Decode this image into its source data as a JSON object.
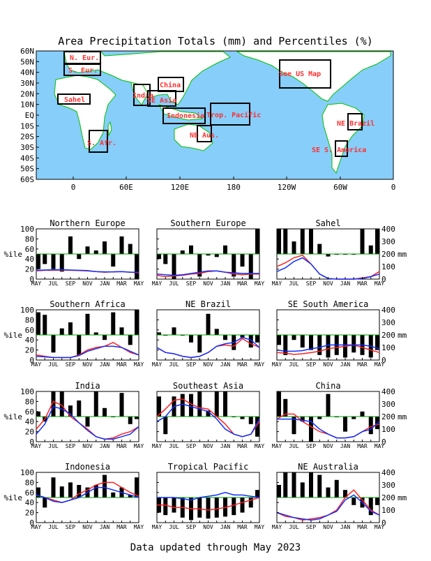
{
  "page": {
    "title": "Area Precipitation Totals (mm) and Percentiles (%)",
    "footer": "Data updated through May 2023"
  },
  "map": {
    "lat_labels": [
      "60N",
      "50N",
      "40N",
      "30N",
      "20N",
      "10N",
      "EQ",
      "10S",
      "20S",
      "30S",
      "40S",
      "50S",
      "60S"
    ],
    "lon_labels": [
      "0",
      "60E",
      "120E",
      "180",
      "120W",
      "60W",
      "0"
    ],
    "regions": [
      {
        "id": "n-eur",
        "label": "N. Eur."
      },
      {
        "id": "s-eur",
        "label": "S. Eur."
      },
      {
        "id": "sahel",
        "label": "Sahel"
      },
      {
        "id": "india",
        "label": "India"
      },
      {
        "id": "china",
        "label": "China"
      },
      {
        "id": "se-asia",
        "label": "SE Asia"
      },
      {
        "id": "indonesia",
        "label": "Indonesia"
      },
      {
        "id": "trop-pacific",
        "label": "Trop. Pacific"
      },
      {
        "id": "ne-aus",
        "label": "NE Aus."
      },
      {
        "id": "s-afr",
        "label": "S. Afr."
      },
      {
        "id": "us-map",
        "label": "See US Map"
      },
      {
        "id": "ne-brazil",
        "label": "NE Brazil"
      },
      {
        "id": "se-s-america",
        "label": "SE S. America"
      }
    ],
    "colors": {
      "ocean": "#87cefa",
      "land": "#ffffff",
      "coast": "#00c000",
      "box": "#000000",
      "label": "#ff3030"
    }
  },
  "axes_text": {
    "pct_label": "%ile",
    "mm_label": "mm",
    "pct_ticks": [
      "0",
      "20",
      "40",
      "60",
      "80",
      "100"
    ],
    "mm_ticks": [
      "0",
      "100",
      "200",
      "300",
      "400"
    ],
    "month_ticks": [
      "MAY",
      "JUL",
      "SEP",
      "NOV",
      "JAN",
      "MAR",
      "MAY"
    ]
  },
  "chart_data": [
    {
      "type": "bar",
      "title": "Northern Europe",
      "ylim": [
        0,
        100
      ],
      "y2lim": [
        0,
        400
      ],
      "months": [
        "MAY",
        "JUN",
        "JUL",
        "AUG",
        "SEP",
        "OCT",
        "NOV",
        "DEC",
        "JAN",
        "FEB",
        "MAR",
        "APR",
        "MAY"
      ],
      "percentiles": [
        20,
        30,
        20,
        15,
        85,
        40,
        65,
        57,
        75,
        25,
        85,
        70,
        0
      ],
      "series": [
        {
          "name": "red",
          "values": [
            65,
            70,
            70,
            72,
            70,
            68,
            65,
            60,
            55,
            58,
            60,
            55,
            50
          ]
        },
        {
          "name": "blue",
          "values": [
            70,
            72,
            75,
            75,
            72,
            70,
            68,
            60,
            58,
            58,
            60,
            55,
            55
          ]
        }
      ]
    },
    {
      "type": "bar",
      "title": "Southern Europe",
      "ylim": [
        0,
        100
      ],
      "y2lim": [
        0,
        400
      ],
      "months": [
        "MAY",
        "JUN",
        "JUL",
        "AUG",
        "SEP",
        "OCT",
        "NOV",
        "DEC",
        "JAN",
        "FEB",
        "MAR",
        "APR",
        "MAY"
      ],
      "percentiles": [
        40,
        30,
        0,
        57,
        67,
        5,
        47,
        44,
        67,
        5,
        25,
        0,
        100
      ],
      "series": [
        {
          "name": "red",
          "values": [
            30,
            20,
            25,
            30,
            40,
            45,
            60,
            65,
            55,
            40,
            35,
            40,
            40
          ]
        },
        {
          "name": "blue",
          "values": [
            40,
            35,
            30,
            35,
            45,
            55,
            65,
            65,
            55,
            50,
            45,
            45,
            45
          ]
        }
      ]
    },
    {
      "type": "bar",
      "title": "Sahel",
      "ylim": [
        0,
        100
      ],
      "y2lim": [
        0,
        400
      ],
      "months": [
        "MAY",
        "JUN",
        "JUL",
        "AUG",
        "SEP",
        "OCT",
        "NOV",
        "DEC",
        "JAN",
        "FEB",
        "MAR",
        "APR",
        "MAY"
      ],
      "percentiles": [
        100,
        100,
        75,
        100,
        100,
        70,
        45,
        50,
        50,
        50,
        100,
        67,
        100
      ],
      "series": [
        {
          "name": "red",
          "values": [
            100,
            130,
            170,
            190,
            120,
            40,
            5,
            0,
            0,
            0,
            10,
            20,
            60
          ]
        },
        {
          "name": "blue",
          "values": [
            60,
            90,
            140,
            170,
            120,
            40,
            5,
            0,
            0,
            0,
            5,
            20,
            40
          ]
        }
      ]
    },
    {
      "type": "bar",
      "title": "Southern Africa",
      "ylim": [
        0,
        100
      ],
      "y2lim": [
        0,
        400
      ],
      "months": [
        "MAY",
        "JUN",
        "JUL",
        "AUG",
        "SEP",
        "OCT",
        "NOV",
        "DEC",
        "JAN",
        "FEB",
        "MAR",
        "APR",
        "MAY"
      ],
      "percentiles": [
        95,
        90,
        15,
        63,
        75,
        10,
        92,
        55,
        40,
        95,
        65,
        30,
        100
      ],
      "series": [
        {
          "name": "red",
          "values": [
            40,
            30,
            20,
            20,
            20,
            40,
            80,
            100,
            110,
            140,
            100,
            60,
            40
          ]
        },
        {
          "name": "blue",
          "values": [
            30,
            25,
            20,
            20,
            20,
            35,
            70,
            90,
            110,
            110,
            100,
            70,
            40
          ]
        }
      ]
    },
    {
      "type": "bar",
      "title": "NE Brazil",
      "ylim": [
        0,
        100
      ],
      "y2lim": [
        0,
        400
      ],
      "months": [
        "MAY",
        "JUN",
        "JUL",
        "AUG",
        "SEP",
        "OCT",
        "NOV",
        "DEC",
        "JAN",
        "FEB",
        "MAR",
        "APR",
        "MAY"
      ],
      "percentiles": [
        55,
        50,
        65,
        50,
        35,
        15,
        92,
        62,
        40,
        20,
        45,
        25,
        35
      ],
      "series": [
        {
          "name": "red",
          "values": [
            100,
            60,
            50,
            30,
            20,
            30,
            60,
            110,
            120,
            110,
            170,
            130,
            100
          ]
        },
        {
          "name": "blue",
          "values": [
            100,
            60,
            50,
            30,
            20,
            30,
            60,
            110,
            130,
            140,
            180,
            160,
            100
          ]
        }
      ]
    },
    {
      "type": "bar",
      "title": "SE South America",
      "ylim": [
        0,
        100
      ],
      "y2lim": [
        0,
        400
      ],
      "months": [
        "MAY",
        "JUN",
        "JUL",
        "AUG",
        "SEP",
        "OCT",
        "NOV",
        "DEC",
        "JAN",
        "FEB",
        "MAR",
        "APR",
        "MAY"
      ],
      "percentiles": [
        30,
        10,
        40,
        25,
        20,
        10,
        5,
        10,
        5,
        15,
        10,
        5,
        20
      ],
      "series": [
        {
          "name": "red",
          "values": [
            60,
            55,
            45,
            50,
            60,
            70,
            90,
            100,
            110,
            120,
            100,
            80,
            60
          ]
        },
        {
          "name": "blue",
          "values": [
            80,
            70,
            70,
            75,
            90,
            100,
            120,
            120,
            120,
            120,
            120,
            110,
            90
          ]
        }
      ]
    },
    {
      "type": "bar",
      "title": "India",
      "ylim": [
        0,
        100
      ],
      "y2lim": [
        0,
        400
      ],
      "months": [
        "MAY",
        "JUN",
        "JUL",
        "AUG",
        "SEP",
        "OCT",
        "NOV",
        "DEC",
        "JAN",
        "FEB",
        "MAR",
        "APR",
        "MAY"
      ],
      "percentiles": [
        60,
        40,
        100,
        100,
        72,
        82,
        30,
        100,
        67,
        50,
        97,
        35,
        45
      ],
      "series": [
        {
          "name": "red",
          "values": [
            100,
            180,
            320,
            290,
            200,
            150,
            100,
            40,
            20,
            30,
            60,
            80,
            120
          ]
        },
        {
          "name": "blue",
          "values": [
            60,
            140,
            280,
            260,
            220,
            150,
            90,
            40,
            20,
            20,
            40,
            60,
            120
          ]
        }
      ]
    },
    {
      "type": "bar",
      "title": "Southeast Asia",
      "ylim": [
        0,
        100
      ],
      "y2lim": [
        0,
        400
      ],
      "months": [
        "MAY",
        "JUN",
        "JUL",
        "AUG",
        "SEP",
        "OCT",
        "NOV",
        "DEC",
        "JAN",
        "FEB",
        "MAR",
        "APR",
        "MAY"
      ],
      "percentiles": [
        90,
        15,
        90,
        95,
        95,
        100,
        62,
        100,
        100,
        50,
        45,
        35,
        10
      ],
      "series": [
        {
          "name": "red",
          "values": [
            200,
            260,
            330,
            340,
            300,
            270,
            260,
            200,
            140,
            60,
            40,
            60,
            160
          ]
        },
        {
          "name": "blue",
          "values": [
            160,
            200,
            280,
            300,
            280,
            260,
            240,
            180,
            100,
            60,
            40,
            60,
            180
          ]
        }
      ]
    },
    {
      "type": "bar",
      "title": "China",
      "ylim": [
        0,
        100
      ],
      "y2lim": [
        0,
        400
      ],
      "months": [
        "MAY",
        "JUN",
        "JUL",
        "AUG",
        "SEP",
        "OCT",
        "NOV",
        "DEC",
        "JAN",
        "FEB",
        "MAR",
        "APR",
        "MAY"
      ],
      "percentiles": [
        100,
        85,
        15,
        40,
        0,
        45,
        95,
        50,
        20,
        45,
        60,
        15,
        25
      ],
      "series": [
        {
          "name": "red",
          "values": [
            180,
            220,
            220,
            160,
            120,
            80,
            60,
            30,
            30,
            40,
            80,
            120,
            140
          ]
        },
        {
          "name": "blue",
          "values": [
            180,
            180,
            180,
            170,
            160,
            100,
            60,
            30,
            30,
            40,
            80,
            100,
            160
          ]
        }
      ]
    },
    {
      "type": "bar",
      "title": "Indonesia",
      "ylim": [
        0,
        100
      ],
      "y2lim": [
        0,
        400
      ],
      "months": [
        "MAY",
        "JUN",
        "JUL",
        "AUG",
        "SEP",
        "OCT",
        "NOV",
        "DEC",
        "JAN",
        "FEB",
        "MAR",
        "APR",
        "MAY"
      ],
      "percentiles": [
        70,
        30,
        90,
        72,
        80,
        75,
        70,
        75,
        95,
        60,
        70,
        55,
        90
      ],
      "series": [
        {
          "name": "red",
          "values": [
            220,
            200,
            180,
            160,
            180,
            230,
            260,
            300,
            320,
            320,
            280,
            240,
            210
          ]
        },
        {
          "name": "blue",
          "values": [
            220,
            200,
            170,
            160,
            180,
            200,
            240,
            280,
            280,
            260,
            240,
            220,
            200
          ]
        }
      ]
    },
    {
      "type": "bar",
      "title": "Tropical Pacific",
      "ylim": [
        0,
        100
      ],
      "y2lim": [
        0,
        400
      ],
      "months": [
        "MAY",
        "JUN",
        "JUL",
        "AUG",
        "SEP",
        "OCT",
        "NOV",
        "DEC",
        "JAN",
        "FEB",
        "MAR",
        "APR",
        "MAY"
      ],
      "percentiles": [
        20,
        15,
        20,
        10,
        5,
        10,
        8,
        10,
        12,
        15,
        20,
        30,
        65
      ],
      "series": [
        {
          "name": "red",
          "values": [
            140,
            140,
            120,
            120,
            110,
            110,
            100,
            110,
            120,
            140,
            160,
            180,
            200
          ]
        },
        {
          "name": "blue",
          "values": [
            200,
            200,
            200,
            190,
            180,
            200,
            210,
            220,
            240,
            220,
            220,
            210,
            200
          ]
        }
      ]
    },
    {
      "type": "bar",
      "title": "NE Australia",
      "ylim": [
        0,
        100
      ],
      "y2lim": [
        0,
        400
      ],
      "months": [
        "MAY",
        "JUN",
        "JUL",
        "AUG",
        "SEP",
        "OCT",
        "NOV",
        "DEC",
        "JAN",
        "FEB",
        "MAR",
        "APR",
        "MAY"
      ],
      "percentiles": [
        75,
        100,
        100,
        80,
        100,
        95,
        70,
        85,
        65,
        35,
        30,
        15,
        35
      ],
      "series": [
        {
          "name": "red",
          "values": [
            80,
            50,
            40,
            20,
            30,
            40,
            60,
            100,
            200,
            260,
            180,
            100,
            60
          ]
        },
        {
          "name": "blue",
          "values": [
            80,
            60,
            40,
            30,
            20,
            30,
            60,
            90,
            180,
            220,
            160,
            90,
            60
          ]
        }
      ]
    }
  ]
}
